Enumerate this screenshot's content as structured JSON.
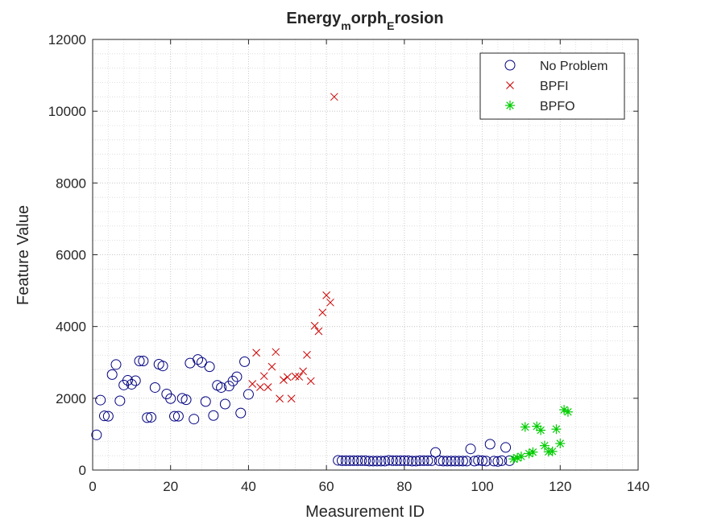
{
  "chart_data": {
    "type": "scatter",
    "title": "Energy",
    "title_sub_1": "m",
    "title_mid": "orph",
    "title_sub_2": "E",
    "title_end": "rosion",
    "xlabel": "Measurement ID",
    "ylabel": "Feature Value",
    "xlim": [
      0,
      140
    ],
    "ylim": [
      0,
      12000
    ],
    "xticks": [
      "0",
      "20",
      "40",
      "60",
      "80",
      "100",
      "120",
      "140"
    ],
    "yticks": [
      "0",
      "2000",
      "4000",
      "6000",
      "8000",
      "10000",
      "12000"
    ],
    "grid": true,
    "minor_grid": true,
    "legend_position": "top-right",
    "series": [
      {
        "name": "No Problem",
        "marker": "circle",
        "color": "#000080",
        "points": [
          [
            1,
            980
          ],
          [
            2,
            1950
          ],
          [
            3,
            1510
          ],
          [
            4,
            1500
          ],
          [
            5,
            2660
          ],
          [
            6,
            2940
          ],
          [
            7,
            1930
          ],
          [
            8,
            2370
          ],
          [
            9,
            2500
          ],
          [
            10,
            2390
          ],
          [
            11,
            2490
          ],
          [
            12,
            3040
          ],
          [
            13,
            3040
          ],
          [
            14,
            1460
          ],
          [
            15,
            1470
          ],
          [
            16,
            2300
          ],
          [
            17,
            2950
          ],
          [
            18,
            2900
          ],
          [
            19,
            2120
          ],
          [
            20,
            1990
          ],
          [
            21,
            1500
          ],
          [
            22,
            1500
          ],
          [
            23,
            2000
          ],
          [
            24,
            1960
          ],
          [
            25,
            2980
          ],
          [
            26,
            1420
          ],
          [
            27,
            3080
          ],
          [
            28,
            3000
          ],
          [
            29,
            1910
          ],
          [
            30,
            2880
          ],
          [
            31,
            1520
          ],
          [
            32,
            2360
          ],
          [
            33,
            2300
          ],
          [
            34,
            1840
          ],
          [
            35,
            2340
          ],
          [
            36,
            2480
          ],
          [
            37,
            2600
          ],
          [
            38,
            1590
          ],
          [
            39,
            3020
          ],
          [
            40,
            2110
          ],
          [
            63,
            270
          ],
          [
            64,
            260
          ],
          [
            65,
            260
          ],
          [
            66,
            260
          ],
          [
            67,
            260
          ],
          [
            68,
            260
          ],
          [
            69,
            260
          ],
          [
            70,
            260
          ],
          [
            71,
            250
          ],
          [
            72,
            250
          ],
          [
            73,
            250
          ],
          [
            74,
            250
          ],
          [
            75,
            250
          ],
          [
            76,
            270
          ],
          [
            77,
            260
          ],
          [
            78,
            260
          ],
          [
            79,
            260
          ],
          [
            80,
            260
          ],
          [
            81,
            260
          ],
          [
            82,
            250
          ],
          [
            83,
            250
          ],
          [
            84,
            260
          ],
          [
            85,
            260
          ],
          [
            86,
            260
          ],
          [
            87,
            260
          ],
          [
            88,
            490
          ],
          [
            89,
            260
          ],
          [
            90,
            250
          ],
          [
            91,
            250
          ],
          [
            92,
            250
          ],
          [
            93,
            250
          ],
          [
            94,
            250
          ],
          [
            95,
            250
          ],
          [
            96,
            250
          ],
          [
            97,
            590
          ],
          [
            98,
            250
          ],
          [
            99,
            270
          ],
          [
            100,
            260
          ],
          [
            101,
            250
          ],
          [
            102,
            720
          ],
          [
            103,
            250
          ],
          [
            104,
            240
          ],
          [
            105,
            260
          ],
          [
            106,
            630
          ],
          [
            107,
            260
          ]
        ]
      },
      {
        "name": "BPFI",
        "marker": "x",
        "color": "#cc0000",
        "points": [
          [
            41,
            2400
          ],
          [
            42,
            3270
          ],
          [
            43,
            2310
          ],
          [
            44,
            2620
          ],
          [
            45,
            2310
          ],
          [
            46,
            2880
          ],
          [
            47,
            3290
          ],
          [
            48,
            1990
          ],
          [
            49,
            2510
          ],
          [
            50,
            2590
          ],
          [
            51,
            1990
          ],
          [
            52,
            2610
          ],
          [
            53,
            2600
          ],
          [
            54,
            2750
          ],
          [
            55,
            3210
          ],
          [
            56,
            2480
          ],
          [
            57,
            4020
          ],
          [
            58,
            3870
          ],
          [
            59,
            4390
          ],
          [
            60,
            4870
          ],
          [
            61,
            4670
          ],
          [
            62,
            10400
          ]
        ]
      },
      {
        "name": "BPFO",
        "marker": "asterisk",
        "color": "#00cc00",
        "points": [
          [
            108,
            310
          ],
          [
            109,
            340
          ],
          [
            110,
            380
          ],
          [
            111,
            1200
          ],
          [
            112,
            460
          ],
          [
            113,
            500
          ],
          [
            114,
            1220
          ],
          [
            115,
            1110
          ],
          [
            116,
            680
          ],
          [
            117,
            510
          ],
          [
            118,
            520
          ],
          [
            119,
            1140
          ],
          [
            120,
            740
          ],
          [
            121,
            1680
          ],
          [
            122,
            1620
          ]
        ]
      }
    ]
  }
}
